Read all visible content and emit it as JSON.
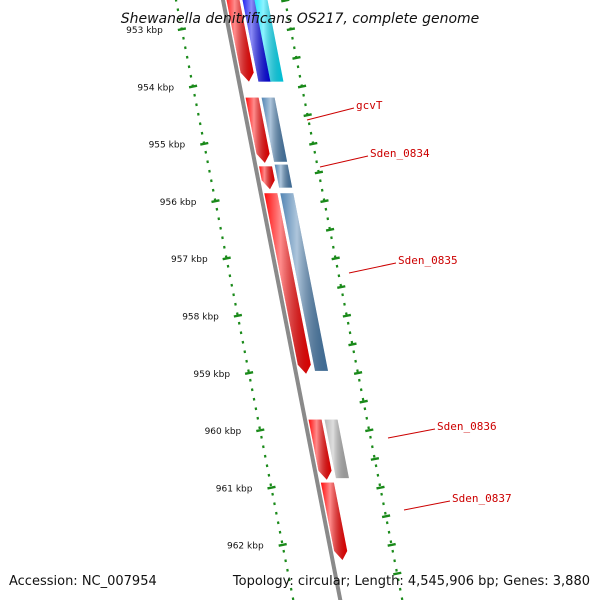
{
  "title": "Shewanella denitrificans OS217, complete genome",
  "colors": {
    "backbone": "#8a8a8a",
    "forward": "#ff0000",
    "reverse": "#4a7fb0",
    "pseudo": "#b5b5b5",
    "tick": "#1a8a1a",
    "label": "#cc0000"
  },
  "ruler": {
    "unit": "kbp",
    "ticks": [
      {
        "kbp": 953,
        "label": "953 kbp"
      },
      {
        "kbp": 954,
        "label": "954 kbp"
      },
      {
        "kbp": 955,
        "label": "955 kbp"
      },
      {
        "kbp": 956,
        "label": "956 kbp"
      },
      {
        "kbp": 957,
        "label": "957 kbp"
      },
      {
        "kbp": 958,
        "label": "958 kbp"
      },
      {
        "kbp": 959,
        "label": "959 kbp"
      },
      {
        "kbp": 960,
        "label": "960 kbp"
      },
      {
        "kbp": 961,
        "label": "961 kbp"
      },
      {
        "kbp": 962,
        "label": "962 kbp"
      }
    ]
  },
  "features": [
    {
      "name": "",
      "strand": "+",
      "start_kbp": 952.3,
      "end_kbp": 953.9,
      "color": "#ff0000"
    },
    {
      "name": "",
      "strand": "-",
      "start_kbp": 952.3,
      "end_kbp": 953.9,
      "color": "#0000ee"
    },
    {
      "name": "",
      "strand": "-",
      "start_kbp": 952.3,
      "end_kbp": 953.9,
      "color": "#00e5ff",
      "lane": 2
    },
    {
      "name": "gcvT",
      "strand": "+",
      "start_kbp": 954.18,
      "end_kbp": 955.32,
      "color": "#ff0000"
    },
    {
      "name": "gcvT",
      "strand": "-",
      "start_kbp": 954.18,
      "end_kbp": 955.3,
      "color": "#4a7fb0",
      "labeled": true
    },
    {
      "name": "Sden_0834",
      "strand": "+",
      "start_kbp": 955.38,
      "end_kbp": 955.78,
      "color": "#ff0000"
    },
    {
      "name": "Sden_0834",
      "strand": "-",
      "start_kbp": 955.35,
      "end_kbp": 955.75,
      "color": "#4a7fb0",
      "labeled": true
    },
    {
      "name": "Sden_0835",
      "strand": "+",
      "start_kbp": 955.85,
      "end_kbp": 959.0,
      "color": "#ff0000"
    },
    {
      "name": "Sden_0835",
      "strand": "-",
      "start_kbp": 955.85,
      "end_kbp": 958.95,
      "color": "#4a7fb0",
      "labeled": true
    },
    {
      "name": "Sden_0836",
      "strand": "+",
      "start_kbp": 959.8,
      "end_kbp": 960.85,
      "color": "#ff0000"
    },
    {
      "name": "Sden_0836",
      "strand": "-",
      "start_kbp": 959.8,
      "end_kbp": 960.82,
      "color": "#b5b5b5",
      "labeled": true
    },
    {
      "name": "Sden_0837",
      "strand": "+",
      "start_kbp": 960.9,
      "end_kbp": 962.25,
      "color": "#ff0000",
      "labeled": true
    }
  ],
  "footer": {
    "accession": "Accession: NC_007954",
    "summary": "Topology: circular; Length: 4,545,906 bp; Genes: 3,880"
  }
}
